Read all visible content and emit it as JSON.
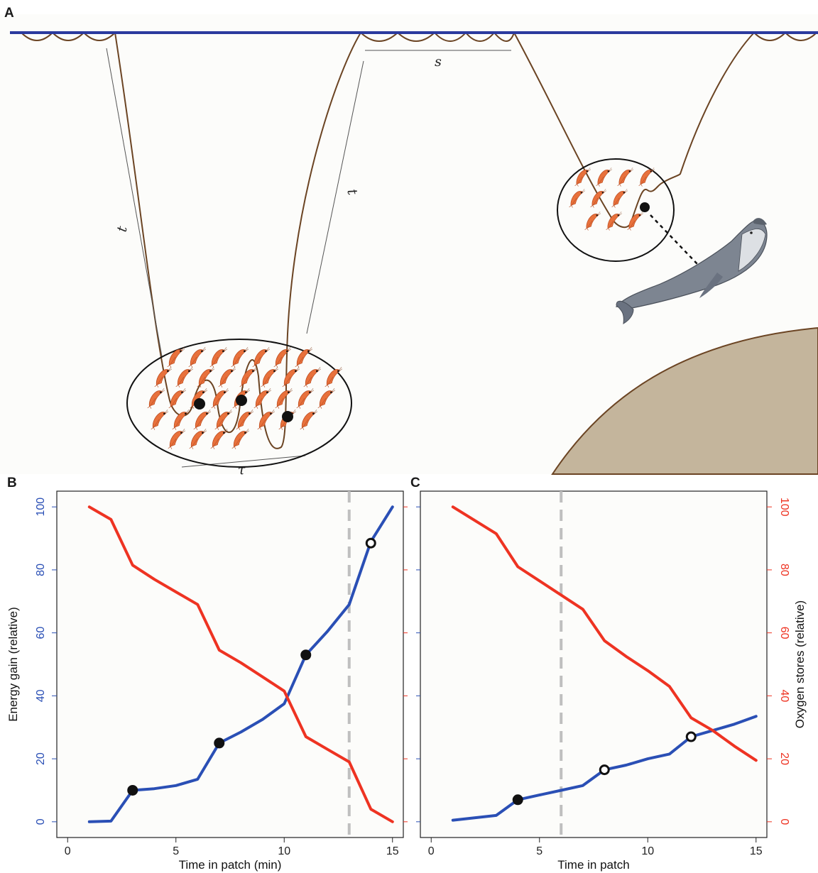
{
  "panels": {
    "a": "A",
    "b": "B",
    "c": "C"
  },
  "diagram": {
    "label_s": "s",
    "label_t_left": "t",
    "label_t_right": "t",
    "label_tau": "τ"
  },
  "colors": {
    "sea_surface": "#2b3a9e",
    "dive_path": "#6b4423",
    "energy_line": "#2a4fb5",
    "oxygen_line": "#ee3322",
    "threshold": "#bfbfbf",
    "seafloor": "#c4b59c",
    "panel_bg": "#fcfcfa"
  },
  "chart_data": [
    {
      "type": "line",
      "panel": "B",
      "xlabel": "Time in patch (min)",
      "ylabel_left": "Energy gain (relative)",
      "ylabel_right": "",
      "xlim": [
        -0.5,
        15.5
      ],
      "ylim": [
        -5,
        105
      ],
      "x_ticks": [
        "0",
        "5",
        "10",
        "15"
      ],
      "y_ticks_left": [
        "0",
        "20",
        "40",
        "60",
        "80",
        "100"
      ],
      "threshold_x": 13,
      "series": [
        {
          "name": "",
          "axis": "left",
          "x": [
            1,
            2,
            3,
            4,
            5,
            6,
            7,
            8,
            9,
            10,
            11,
            12,
            13,
            14,
            15
          ],
          "values": [
            0,
            0.2,
            10,
            10.5,
            11.5,
            13.5,
            25,
            28.5,
            32.5,
            37.5,
            53,
            60.5,
            69,
            89,
            100
          ]
        },
        {
          "name": "",
          "axis": "right",
          "x": [
            1,
            2,
            3,
            4,
            5,
            6,
            7,
            8,
            9,
            10,
            11,
            12,
            13,
            14,
            15
          ],
          "values": [
            100,
            96,
            81.5,
            77,
            73,
            69,
            54.5,
            50.5,
            46,
            41.5,
            27,
            23,
            19,
            4,
            0
          ]
        }
      ],
      "markers": [
        {
          "x": 3,
          "y": 10,
          "style": "filled"
        },
        {
          "x": 7,
          "y": 25,
          "style": "filled"
        },
        {
          "x": 11,
          "y": 53,
          "style": "filled"
        },
        {
          "x": 14,
          "y": 88.5,
          "style": "open"
        }
      ]
    },
    {
      "type": "line",
      "panel": "C",
      "xlabel": "Time in patch",
      "ylabel_left": "",
      "ylabel_right": "Oxygen stores (relative)",
      "xlim": [
        -0.5,
        15.5
      ],
      "ylim": [
        -5,
        105
      ],
      "x_ticks": [
        "0",
        "5",
        "10",
        "15"
      ],
      "y_ticks_right": [
        "0",
        "20",
        "40",
        "60",
        "80",
        "100"
      ],
      "threshold_x": 6,
      "series": [
        {
          "name": "",
          "axis": "left",
          "x": [
            1,
            3,
            4,
            5,
            6,
            7,
            8,
            9,
            10,
            11,
            12,
            13,
            14,
            15
          ],
          "values": [
            0.5,
            2,
            7,
            8.5,
            10,
            11.5,
            16.5,
            18,
            20,
            21.5,
            27,
            29,
            31,
            33.5
          ]
        },
        {
          "name": "",
          "axis": "right",
          "x": [
            1,
            3,
            4,
            5,
            6,
            7,
            8,
            9,
            10,
            11,
            12,
            13,
            14,
            15
          ],
          "values": [
            100,
            91.5,
            81,
            76.5,
            72,
            67.5,
            57.5,
            52.5,
            48,
            43,
            33,
            29,
            24,
            19.5
          ]
        }
      ],
      "markers": [
        {
          "x": 4,
          "y": 7,
          "style": "filled"
        },
        {
          "x": 8,
          "y": 16.5,
          "style": "open"
        },
        {
          "x": 12,
          "y": 27,
          "style": "open"
        }
      ]
    }
  ]
}
